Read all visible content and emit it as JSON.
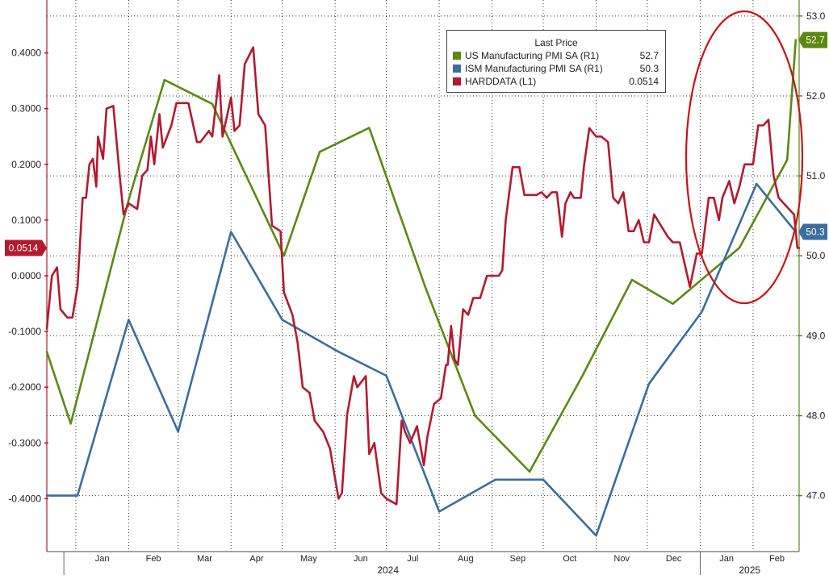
{
  "chart_data": {
    "type": "line",
    "legend": {
      "title": "Last Price",
      "placement": "top-center",
      "entries": [
        {
          "name": "US Manufacturing PMI SA  (R1)",
          "value": "52.7",
          "color": "#5a8a12"
        },
        {
          "name": "ISM Manufacturing PMI SA  (R1)",
          "value": "50.3",
          "color": "#3a6e9e"
        },
        {
          "name": "HARDDATA  (L1)",
          "value": "0.0514",
          "color": "#b5192e"
        }
      ]
    },
    "x_axis": {
      "months": [
        "Jan",
        "Feb",
        "Mar",
        "Apr",
        "May",
        "Jun",
        "Jul",
        "Aug",
        "Sep",
        "Oct",
        "Nov",
        "Dec",
        "Jan",
        "Feb"
      ],
      "years": [
        "2024",
        "2025"
      ],
      "range": [
        "2023-12-15",
        "2025-02-28"
      ]
    },
    "left_axis": {
      "ticks": [
        "0.4000",
        "0.3000",
        "0.2000",
        "0.1000",
        "0.0000",
        "-0.1000",
        "-0.2000",
        "-0.3000",
        "-0.4000"
      ],
      "range": [
        -0.495,
        0.495
      ],
      "last_value_label": "0.0514"
    },
    "right_axis": {
      "ticks": [
        "53.0",
        "52.0",
        "51.0",
        "50.0",
        "49.0",
        "48.0",
        "47.0"
      ],
      "range": [
        46.3,
        53.2
      ],
      "last_value_labels": [
        "52.7",
        "50.3"
      ]
    },
    "grid": true,
    "annotations": [
      {
        "type": "ellipse",
        "color": "#cc1111",
        "note": "circled recent rise"
      }
    ],
    "series": [
      {
        "name": "US Manufacturing PMI SA  (R1)",
        "axis": "right",
        "color": "#5a8a12",
        "points": [
          [
            "2023-12-15",
            48.8
          ],
          [
            "2023-12-29",
            47.9
          ],
          [
            "2024-02-01",
            50.7
          ],
          [
            "2024-02-22",
            52.2
          ],
          [
            "2024-03-21",
            51.9
          ],
          [
            "2024-05-02",
            50.0
          ],
          [
            "2024-05-23",
            51.3
          ],
          [
            "2024-06-21",
            51.6
          ],
          [
            "2024-07-24",
            49.6
          ],
          [
            "2024-08-22",
            48.0
          ],
          [
            "2024-09-23",
            47.3
          ],
          [
            "2024-10-24",
            48.5
          ],
          [
            "2024-11-22",
            49.7
          ],
          [
            "2024-12-16",
            49.4
          ],
          [
            "2025-01-24",
            50.1
          ],
          [
            "2025-02-21",
            51.2
          ],
          [
            "2025-02-26",
            52.7
          ]
        ]
      },
      {
        "name": "ISM Manufacturing PMI SA  (R1)",
        "axis": "right",
        "color": "#3a6e9e",
        "points": [
          [
            "2023-12-15",
            47.0
          ],
          [
            "2024-01-02",
            47.0
          ],
          [
            "2024-02-01",
            49.2
          ],
          [
            "2024-03-01",
            47.8
          ],
          [
            "2024-04-01",
            50.3
          ],
          [
            "2024-05-01",
            49.2
          ],
          [
            "2024-06-03",
            48.8
          ],
          [
            "2024-07-01",
            48.5
          ],
          [
            "2024-08-01",
            46.8
          ],
          [
            "2024-09-03",
            47.2
          ],
          [
            "2024-10-01",
            47.2
          ],
          [
            "2024-11-01",
            46.5
          ],
          [
            "2024-12-02",
            48.4
          ],
          [
            "2025-01-02",
            49.3
          ],
          [
            "2025-02-03",
            50.9
          ],
          [
            "2025-02-26",
            50.3
          ]
        ]
      },
      {
        "name": "HARDDATA  (L1)",
        "axis": "left",
        "color": "#b5192e",
        "points": [
          [
            "2023-12-15",
            -0.095
          ],
          [
            "2023-12-18",
            0.0
          ],
          [
            "2023-12-21",
            0.015
          ],
          [
            "2023-12-23",
            -0.06
          ],
          [
            "2023-12-27",
            -0.075
          ],
          [
            "2023-12-30",
            -0.075
          ],
          [
            "2024-01-02",
            -0.02
          ],
          [
            "2024-01-05",
            0.14
          ],
          [
            "2024-01-07",
            0.14
          ],
          [
            "2024-01-09",
            0.2
          ],
          [
            "2024-01-11",
            0.21
          ],
          [
            "2024-01-13",
            0.16
          ],
          [
            "2024-01-14",
            0.25
          ],
          [
            "2024-01-17",
            0.21
          ],
          [
            "2024-01-19",
            0.3
          ],
          [
            "2024-01-23",
            0.305
          ],
          [
            "2024-01-27",
            0.17
          ],
          [
            "2024-01-29",
            0.11
          ],
          [
            "2024-02-01",
            0.13
          ],
          [
            "2024-02-06",
            0.12
          ],
          [
            "2024-02-09",
            0.18
          ],
          [
            "2024-02-12",
            0.19
          ],
          [
            "2024-02-14",
            0.25
          ],
          [
            "2024-02-16",
            0.2
          ],
          [
            "2024-02-19",
            0.29
          ],
          [
            "2024-02-21",
            0.23
          ],
          [
            "2024-02-26",
            0.27
          ],
          [
            "2024-02-29",
            0.31
          ],
          [
            "2024-03-07",
            0.31
          ],
          [
            "2024-03-12",
            0.24
          ],
          [
            "2024-03-14",
            0.24
          ],
          [
            "2024-03-19",
            0.26
          ],
          [
            "2024-03-21",
            0.25
          ],
          [
            "2024-03-25",
            0.36
          ],
          [
            "2024-03-27",
            0.25
          ],
          [
            "2024-04-01",
            0.32
          ],
          [
            "2024-04-03",
            0.26
          ],
          [
            "2024-04-06",
            0.27
          ],
          [
            "2024-04-09",
            0.38
          ],
          [
            "2024-04-14",
            0.41
          ],
          [
            "2024-04-17",
            0.29
          ],
          [
            "2024-04-21",
            0.27
          ],
          [
            "2024-04-25",
            0.09
          ],
          [
            "2024-04-30",
            0.08
          ],
          [
            "2024-05-02",
            -0.03
          ],
          [
            "2024-05-07",
            -0.07
          ],
          [
            "2024-05-10",
            -0.12
          ],
          [
            "2024-05-13",
            -0.2
          ],
          [
            "2024-05-17",
            -0.21
          ],
          [
            "2024-05-20",
            -0.26
          ],
          [
            "2024-05-25",
            -0.28
          ],
          [
            "2024-05-29",
            -0.31
          ],
          [
            "2024-06-03",
            -0.4
          ],
          [
            "2024-06-05",
            -0.39
          ],
          [
            "2024-06-08",
            -0.25
          ],
          [
            "2024-06-12",
            -0.18
          ],
          [
            "2024-06-14",
            -0.2
          ],
          [
            "2024-06-19",
            -0.18
          ],
          [
            "2024-06-21",
            -0.32
          ],
          [
            "2024-06-24",
            -0.3
          ],
          [
            "2024-06-28",
            -0.39
          ],
          [
            "2024-07-01",
            -0.4
          ],
          [
            "2024-07-07",
            -0.41
          ],
          [
            "2024-07-10",
            -0.26
          ],
          [
            "2024-07-12",
            -0.28
          ],
          [
            "2024-07-15",
            -0.3
          ],
          [
            "2024-07-19",
            -0.27
          ],
          [
            "2024-07-23",
            -0.34
          ],
          [
            "2024-07-25",
            -0.29
          ],
          [
            "2024-07-29",
            -0.23
          ],
          [
            "2024-08-02",
            -0.22
          ],
          [
            "2024-08-05",
            -0.16
          ],
          [
            "2024-08-06",
            -0.16
          ],
          [
            "2024-08-08",
            -0.09
          ],
          [
            "2024-08-10",
            -0.15
          ],
          [
            "2024-08-12",
            -0.16
          ],
          [
            "2024-08-15",
            -0.06
          ],
          [
            "2024-08-18",
            -0.07
          ],
          [
            "2024-08-21",
            -0.04
          ],
          [
            "2024-08-25",
            -0.04
          ],
          [
            "2024-08-29",
            0.0
          ],
          [
            "2024-09-05",
            0.0
          ],
          [
            "2024-09-07",
            0.01
          ],
          [
            "2024-09-09",
            0.1
          ],
          [
            "2024-09-13",
            0.195
          ],
          [
            "2024-09-17",
            0.195
          ],
          [
            "2024-09-20",
            0.145
          ],
          [
            "2024-09-27",
            0.145
          ],
          [
            "2024-09-30",
            0.15
          ],
          [
            "2024-10-03",
            0.14
          ],
          [
            "2024-10-06",
            0.15
          ],
          [
            "2024-10-09",
            0.15
          ],
          [
            "2024-10-12",
            0.07
          ],
          [
            "2024-10-14",
            0.13
          ],
          [
            "2024-10-17",
            0.15
          ],
          [
            "2024-10-19",
            0.14
          ],
          [
            "2024-10-23",
            0.14
          ],
          [
            "2024-10-25",
            0.2
          ],
          [
            "2024-10-28",
            0.265
          ],
          [
            "2024-11-01",
            0.25
          ],
          [
            "2024-11-04",
            0.25
          ],
          [
            "2024-11-08",
            0.24
          ],
          [
            "2024-11-11",
            0.14
          ],
          [
            "2024-11-14",
            0.13
          ],
          [
            "2024-11-17",
            0.15
          ],
          [
            "2024-11-20",
            0.08
          ],
          [
            "2024-11-23",
            0.08
          ],
          [
            "2024-11-26",
            0.1
          ],
          [
            "2024-11-29",
            0.06
          ],
          [
            "2024-12-02",
            0.06
          ],
          [
            "2024-12-05",
            0.11
          ],
          [
            "2024-12-09",
            0.09
          ],
          [
            "2024-12-13",
            0.07
          ],
          [
            "2024-12-16",
            0.06
          ],
          [
            "2024-12-20",
            0.06
          ],
          [
            "2024-12-23",
            0.02
          ],
          [
            "2024-12-26",
            -0.02
          ],
          [
            "2024-12-30",
            0.04
          ],
          [
            "2025-01-02",
            0.04
          ],
          [
            "2025-01-06",
            0.14
          ],
          [
            "2025-01-09",
            0.14
          ],
          [
            "2025-01-12",
            0.1
          ],
          [
            "2025-01-14",
            0.14
          ],
          [
            "2025-01-18",
            0.17
          ],
          [
            "2025-01-21",
            0.13
          ],
          [
            "2025-01-24",
            0.16
          ],
          [
            "2025-01-27",
            0.2
          ],
          [
            "2025-02-01",
            0.2
          ],
          [
            "2025-02-04",
            0.27
          ],
          [
            "2025-02-07",
            0.27
          ],
          [
            "2025-02-10",
            0.28
          ],
          [
            "2025-02-13",
            0.18
          ],
          [
            "2025-02-16",
            0.14
          ],
          [
            "2025-02-19",
            0.13
          ],
          [
            "2025-02-22",
            0.12
          ],
          [
            "2025-02-25",
            0.11
          ],
          [
            "2025-02-27",
            0.05
          ],
          [
            "2025-02-28",
            0.05
          ]
        ]
      }
    ]
  }
}
